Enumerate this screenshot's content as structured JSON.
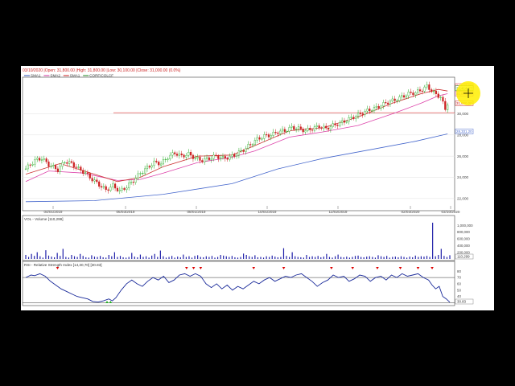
{
  "header": {
    "ohlc_line": "03/10/2020 |Open: 31,800.00 |High: 31,800.00 |Low: 30,100.00 |Close: 31,000.00 (0.0%)",
    "legend": [
      {
        "label": "SMA1",
        "color": "#3355bb"
      },
      {
        "label": "SMA2",
        "color": "#d2339e"
      },
      {
        "label": "SMA1",
        "color": "#cc2222"
      },
      {
        "label": "CORFICOLCF",
        "color": "#228822"
      }
    ],
    "series_info": "CORFICOLCF |Open: 31,800.00 |High: 31,800.00 |Low: 30,100.00 |Close: 31,000.00 (0.0%)"
  },
  "volume_panel": {
    "title": "VOL - Volume [110,299]",
    "last_label": "110,299"
  },
  "rsi_panel": {
    "title": "RSI - Relative Strength Index [14,30,70] [30.83]",
    "last_label": "30.83"
  },
  "colors": {
    "up": "#22aa22",
    "down": "#cc2222",
    "sma_long": "#4466cc",
    "sma_mid": "#dd44aa",
    "sma_short": "#cc3333",
    "support": "#dd3333",
    "volume": "#2222aa",
    "rsi": "#1a2a9a",
    "marker": "#dd0000",
    "highlight": "#ffee00"
  },
  "chart_data": [
    {
      "type": "candlestick",
      "title": "CORFICOLCF",
      "x_tick_labels": [
        "04/01/2019",
        "06/03/2019",
        "08/01/2019",
        "10/01/2019",
        "12/02/2019",
        "02/03/2020",
        "03/10/2020"
      ],
      "y_tick_labels": [
        "22,000",
        "24,000",
        "26,000",
        "28,000",
        "30,000"
      ],
      "ylim": [
        21000,
        33000
      ],
      "price_labels": [
        "32,623.00",
        "32,414.67",
        "31,898.50",
        "31,000.00",
        "28,331.20"
      ],
      "support_level": 30100,
      "close_path": [
        [
          0,
          24800
        ],
        [
          8,
          25600
        ],
        [
          14,
          25800
        ],
        [
          20,
          25200
        ],
        [
          28,
          24700
        ],
        [
          34,
          25500
        ],
        [
          40,
          25300
        ],
        [
          46,
          24800
        ],
        [
          52,
          24400
        ],
        [
          58,
          23800
        ],
        [
          64,
          23300
        ],
        [
          70,
          22800
        ],
        [
          76,
          23200
        ],
        [
          82,
          22700
        ],
        [
          88,
          23100
        ],
        [
          94,
          23700
        ],
        [
          100,
          24400
        ],
        [
          106,
          24900
        ],
        [
          112,
          25400
        ],
        [
          118,
          25300
        ],
        [
          124,
          25900
        ],
        [
          130,
          26300
        ],
        [
          136,
          26000
        ],
        [
          142,
          26200
        ],
        [
          148,
          25800
        ],
        [
          154,
          25600
        ],
        [
          160,
          25800
        ],
        [
          166,
          26000
        ],
        [
          172,
          25800
        ],
        [
          178,
          25900
        ],
        [
          184,
          26200
        ],
        [
          190,
          26600
        ],
        [
          196,
          27100
        ],
        [
          202,
          27600
        ],
        [
          208,
          27900
        ],
        [
          214,
          28000
        ],
        [
          220,
          28300
        ],
        [
          226,
          28400
        ],
        [
          232,
          28700
        ],
        [
          238,
          28600
        ],
        [
          244,
          28400
        ],
        [
          250,
          28600
        ],
        [
          256,
          28800
        ],
        [
          262,
          28600
        ],
        [
          268,
          28900
        ],
        [
          274,
          29100
        ],
        [
          280,
          29400
        ],
        [
          286,
          29700
        ],
        [
          292,
          30000
        ],
        [
          298,
          30300
        ],
        [
          304,
          30500
        ],
        [
          310,
          30800
        ],
        [
          316,
          31100
        ],
        [
          322,
          31300
        ],
        [
          328,
          31600
        ],
        [
          334,
          31900
        ],
        [
          340,
          32000
        ],
        [
          346,
          32300
        ],
        [
          350,
          32600
        ],
        [
          354,
          32200
        ],
        [
          358,
          31800
        ],
        [
          362,
          31600
        ],
        [
          366,
          30400
        ],
        [
          368,
          31000
        ]
      ],
      "sma_short": [
        [
          0,
          24300
        ],
        [
          30,
          25300
        ],
        [
          60,
          24300
        ],
        [
          80,
          23600
        ],
        [
          100,
          24000
        ],
        [
          120,
          25000
        ],
        [
          150,
          26000
        ],
        [
          180,
          26100
        ],
        [
          200,
          27000
        ],
        [
          230,
          28400
        ],
        [
          260,
          28700
        ],
        [
          290,
          29700
        ],
        [
          320,
          31000
        ],
        [
          345,
          31900
        ],
        [
          360,
          32300
        ],
        [
          368,
          32150
        ]
      ],
      "sma_mid": [
        [
          0,
          23600
        ],
        [
          20,
          24600
        ],
        [
          50,
          24400
        ],
        [
          80,
          23700
        ],
        [
          100,
          23800
        ],
        [
          120,
          24400
        ],
        [
          150,
          25400
        ],
        [
          180,
          25900
        ],
        [
          200,
          26500
        ],
        [
          230,
          27800
        ],
        [
          260,
          28300
        ],
        [
          290,
          28900
        ],
        [
          320,
          30000
        ],
        [
          345,
          31000
        ],
        [
          360,
          31700
        ],
        [
          368,
          31900
        ]
      ],
      "sma_long": [
        [
          0,
          21700
        ],
        [
          60,
          21800
        ],
        [
          120,
          22400
        ],
        [
          180,
          23400
        ],
        [
          220,
          24800
        ],
        [
          260,
          25800
        ],
        [
          300,
          26600
        ],
        [
          340,
          27400
        ],
        [
          368,
          28100
        ]
      ]
    },
    {
      "type": "bar",
      "title": "VOL - Volume",
      "y_tick_labels": [
        "1,000,000",
        "800,000",
        "600,000",
        "400,000",
        "200,000"
      ],
      "ylim": [
        0,
        1150000
      ],
      "values": [
        120000,
        60000,
        150000,
        90000,
        200000,
        80000,
        40000,
        260000,
        100000,
        70000,
        50000,
        180000,
        90000,
        300000,
        60000,
        40000,
        120000,
        80000,
        60000,
        150000,
        90000,
        50000,
        40000,
        110000,
        70000,
        60000,
        90000,
        50000,
        40000,
        120000,
        80000,
        200000,
        60000,
        90000,
        50000,
        40000,
        60000,
        180000,
        70000,
        50000,
        130000,
        60000,
        80000,
        40000,
        100000,
        150000,
        60000,
        250000,
        80000,
        40000,
        60000,
        90000,
        40000,
        70000,
        50000,
        130000,
        60000,
        80000,
        40000,
        90000,
        110000,
        60000,
        50000,
        80000,
        60000,
        90000,
        40000,
        60000,
        120000,
        100000,
        80000,
        60000,
        90000,
        50000,
        40000,
        60000,
        160000,
        120000,
        80000,
        60000,
        110000,
        50000,
        60000,
        40000,
        80000,
        60000,
        100000,
        70000,
        50000,
        60000,
        320000,
        90000,
        60000,
        200000,
        80000,
        60000,
        50000,
        40000,
        120000,
        60000,
        80000,
        60000,
        90000,
        50000,
        70000,
        150000,
        60000,
        40000,
        80000,
        130000,
        60000,
        50000,
        70000,
        40000,
        60000,
        90000,
        100000,
        60000,
        50000,
        70000,
        80000,
        60000,
        40000,
        110000,
        80000,
        60000,
        90000,
        40000,
        60000,
        70000,
        50000,
        80000,
        60000,
        40000,
        70000,
        50000,
        100000,
        60000,
        80000,
        70000,
        90000,
        60000,
        1080000,
        80000,
        120000,
        300000,
        90000,
        60000,
        110299
      ]
    },
    {
      "type": "line",
      "title": "RSI - Relative Strength Index",
      "y_tick_labels": [
        "80",
        "70",
        "60",
        "50",
        "40"
      ],
      "ylim": [
        28,
        88
      ],
      "levels": [
        30,
        70
      ],
      "overbought_markers_x": [
        36,
        182,
        190,
        198,
        258,
        292,
        346,
        370,
        398,
        424,
        444,
        460
      ],
      "oversold_markers_x": [
        92,
        96
      ],
      "values": [
        [
          0,
          70
        ],
        [
          6,
          74
        ],
        [
          10,
          73
        ],
        [
          16,
          76
        ],
        [
          22,
          72
        ],
        [
          28,
          64
        ],
        [
          34,
          58
        ],
        [
          40,
          52
        ],
        [
          46,
          48
        ],
        [
          52,
          44
        ],
        [
          58,
          40
        ],
        [
          64,
          38
        ],
        [
          70,
          36
        ],
        [
          76,
          32
        ],
        [
          82,
          31
        ],
        [
          88,
          33
        ],
        [
          94,
          36
        ],
        [
          98,
          33
        ],
        [
          102,
          38
        ],
        [
          108,
          50
        ],
        [
          114,
          60
        ],
        [
          120,
          66
        ],
        [
          126,
          60
        ],
        [
          132,
          56
        ],
        [
          138,
          64
        ],
        [
          144,
          70
        ],
        [
          150,
          66
        ],
        [
          156,
          72
        ],
        [
          162,
          62
        ],
        [
          168,
          66
        ],
        [
          174,
          74
        ],
        [
          180,
          76
        ],
        [
          186,
          72
        ],
        [
          192,
          76
        ],
        [
          198,
          72
        ],
        [
          204,
          60
        ],
        [
          210,
          54
        ],
        [
          216,
          60
        ],
        [
          222,
          52
        ],
        [
          228,
          58
        ],
        [
          234,
          50
        ],
        [
          240,
          56
        ],
        [
          246,
          52
        ],
        [
          252,
          58
        ],
        [
          258,
          64
        ],
        [
          264,
          60
        ],
        [
          270,
          66
        ],
        [
          276,
          70
        ],
        [
          282,
          64
        ],
        [
          288,
          68
        ],
        [
          294,
          72
        ],
        [
          300,
          70
        ],
        [
          306,
          74
        ],
        [
          312,
          76
        ],
        [
          318,
          70
        ],
        [
          324,
          64
        ],
        [
          330,
          56
        ],
        [
          336,
          62
        ],
        [
          342,
          66
        ],
        [
          348,
          74
        ],
        [
          354,
          70
        ],
        [
          360,
          72
        ],
        [
          366,
          64
        ],
        [
          372,
          68
        ],
        [
          378,
          74
        ],
        [
          384,
          72
        ],
        [
          390,
          64
        ],
        [
          396,
          70
        ],
        [
          402,
          72
        ],
        [
          408,
          66
        ],
        [
          414,
          74
        ],
        [
          420,
          70
        ],
        [
          426,
          76
        ],
        [
          432,
          72
        ],
        [
          438,
          74
        ],
        [
          444,
          76
        ],
        [
          450,
          70
        ],
        [
          456,
          66
        ],
        [
          460,
          58
        ],
        [
          464,
          52
        ],
        [
          468,
          56
        ],
        [
          472,
          40
        ],
        [
          476,
          36
        ],
        [
          480,
          30.83
        ]
      ]
    }
  ]
}
